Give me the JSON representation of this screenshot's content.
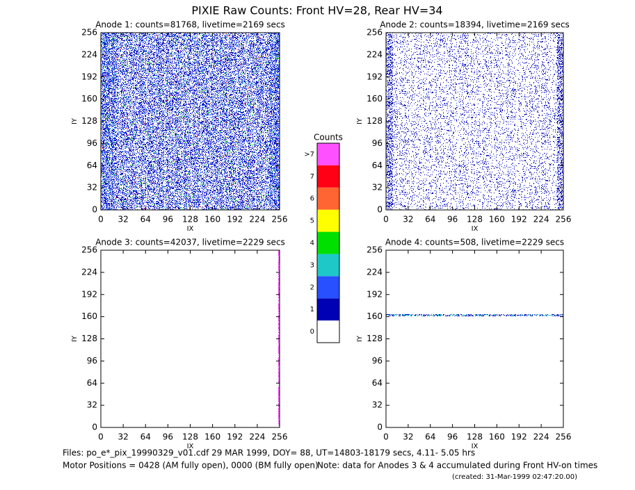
{
  "title": "PIXIE Raw Counts:  Front HV=28, Rear HV=34",
  "chart_data": [
    {
      "type": "heatmap",
      "title": "Anode 1: counts=81768, livetime=2169 secs",
      "xlabel": "IX",
      "ylabel": "IY",
      "xlim": [
        0,
        256
      ],
      "ylim": [
        0,
        256
      ],
      "xticks": [
        0,
        32,
        64,
        96,
        128,
        160,
        192,
        224,
        256
      ],
      "yticks": [
        0,
        32,
        64,
        96,
        128,
        160,
        192,
        224,
        256
      ]
    },
    {
      "type": "heatmap",
      "title": "Anode 2: counts=18394, livetime=2169 secs",
      "xlabel": "IX",
      "ylabel": "IY",
      "xlim": [
        0,
        256
      ],
      "ylim": [
        0,
        256
      ],
      "xticks": [
        0,
        32,
        64,
        96,
        128,
        160,
        192,
        224,
        256
      ],
      "yticks": [
        0,
        32,
        64,
        96,
        128,
        160,
        192,
        224,
        256
      ]
    },
    {
      "type": "heatmap",
      "title": "Anode 3: counts=42037, livetime=2229 secs",
      "xlabel": "IX",
      "ylabel": "IY",
      "xlim": [
        0,
        256
      ],
      "ylim": [
        0,
        256
      ],
      "xticks": [
        0,
        32,
        64,
        96,
        128,
        160,
        192,
        224,
        256
      ],
      "yticks": [
        0,
        32,
        64,
        96,
        128,
        160,
        192,
        224,
        256
      ]
    },
    {
      "type": "heatmap",
      "title": "Anode 4: counts=508, livetime=2229 secs",
      "xlabel": "IX",
      "ylabel": "IY",
      "xlim": [
        0,
        256
      ],
      "ylim": [
        0,
        256
      ],
      "xticks": [
        0,
        32,
        64,
        96,
        128,
        160,
        192,
        224,
        256
      ],
      "yticks": [
        0,
        32,
        64,
        96,
        128,
        160,
        192,
        224,
        256
      ]
    }
  ],
  "colorbar": {
    "title": "Counts",
    "ticks": [
      0,
      1,
      2,
      3,
      4,
      5,
      6,
      7,
      {
        "value": 8,
        "label": ">7"
      }
    ],
    "colors": [
      "#ffffff",
      "#0000b4",
      "#2850ff",
      "#1ec8c8",
      "#00e000",
      "#ffff00",
      "#ff6432",
      "#ff0014",
      "#ff50ff"
    ]
  },
  "footer": {
    "files": "Files: po_e*_pix_19990329_v01.cdf    29 MAR 1999, DOY= 88, UT=14803-18179 secs,  4.11- 5.05 hrs",
    "motor": "Motor Positions = 0428 (AM fully open), 0000 (BM fully open)",
    "note": "Note: data for Anodes 3 & 4 accumulated during Front HV-on times",
    "created": "(created: 31-Mar-1999 02:47:20.00)"
  }
}
